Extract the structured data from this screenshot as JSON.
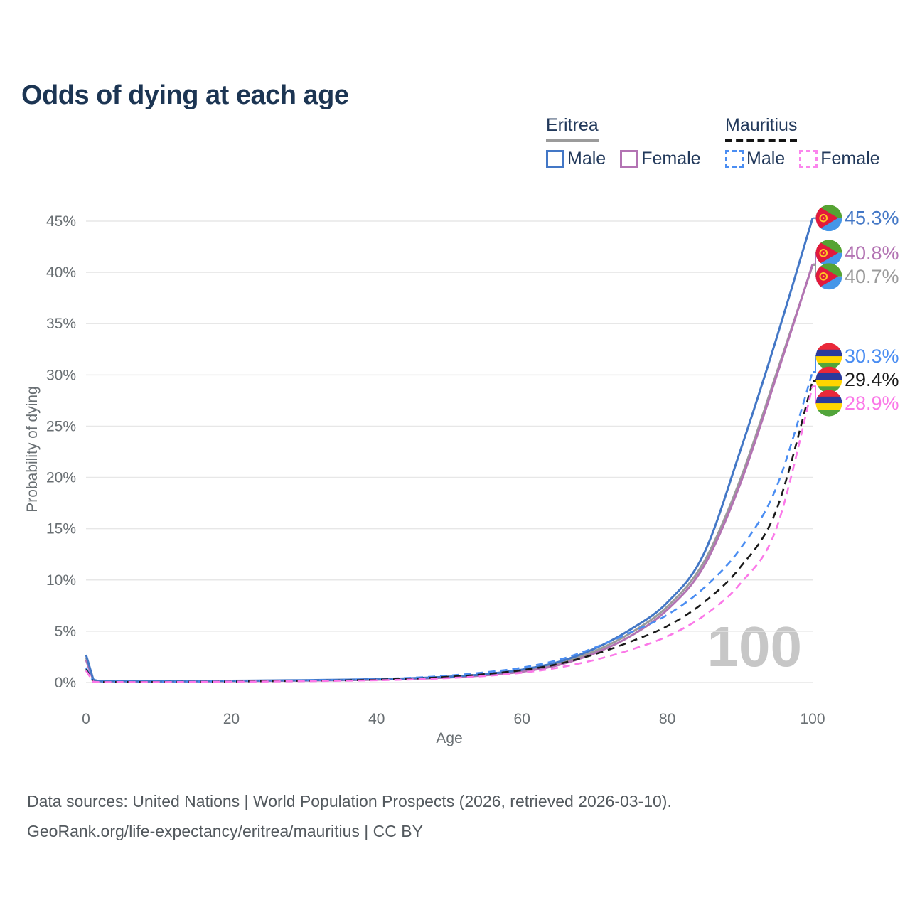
{
  "title": "Odds of dying at each age",
  "watermark": "100",
  "legend": {
    "eritrea": {
      "label": "Eritrea",
      "male": "Male",
      "female": "Female"
    },
    "mauritius": {
      "label": "Mauritius",
      "male": "Male",
      "female": "Female"
    }
  },
  "footer": {
    "line1": "Data sources: United Nations | World Population Prospects (2026, retrieved 2026-03-10).",
    "line2": "GeoRank.org/life-expectancy/eritrea/mauritius | CC BY"
  },
  "colors": {
    "title_text": "#1c3553",
    "legend_text": "#22395b",
    "tick_text": "#696f73",
    "grid": "#e7e7e7",
    "watermark_text": "#c7c7c7",
    "eritrea_underline": "#9b9b9b",
    "mauritius_underline": "#141414"
  },
  "chart_data": {
    "type": "line",
    "title": "Odds of dying at each age",
    "xlabel": "Age",
    "ylabel": "Probability of dying",
    "xlim": [
      0,
      100
    ],
    "ylim_percent": [
      0,
      45
    ],
    "x_ticks": [
      0,
      20,
      40,
      60,
      80,
      100
    ],
    "y_ticks_percent": [
      0,
      5,
      10,
      15,
      20,
      25,
      30,
      35,
      40,
      45
    ],
    "grid": true,
    "legend_position": "top-right",
    "x": [
      0,
      1,
      5,
      10,
      15,
      20,
      25,
      30,
      35,
      40,
      45,
      50,
      55,
      60,
      65,
      70,
      75,
      80,
      85,
      90,
      95,
      100
    ],
    "series": [
      {
        "name": "Eritrea Male",
        "country": "Eritrea",
        "sex": "Male",
        "style": "solid",
        "color": "#4377c6",
        "flag": "eritrea",
        "end_label": "45.3%",
        "end_value_percent": 45.3,
        "values": [
          2.7,
          0.3,
          0.15,
          0.12,
          0.14,
          0.17,
          0.2,
          0.23,
          0.27,
          0.33,
          0.42,
          0.57,
          0.82,
          1.25,
          2.0,
          3.3,
          5.2,
          7.8,
          12.5,
          22.5,
          33.5,
          45.3
        ]
      },
      {
        "name": "Eritrea Female",
        "country": "Eritrea",
        "sex": "Female",
        "style": "solid",
        "color": "#b373b3",
        "flag": "eritrea",
        "end_label": "40.8%",
        "end_value_percent": 40.8,
        "values": [
          2.2,
          0.26,
          0.12,
          0.1,
          0.11,
          0.13,
          0.16,
          0.19,
          0.23,
          0.28,
          0.36,
          0.49,
          0.71,
          1.05,
          1.7,
          2.85,
          4.55,
          7.1,
          11.3,
          19.3,
          29.8,
          40.8
        ]
      },
      {
        "name": "Eritrea",
        "country": "Eritrea",
        "sex": "Both",
        "style": "solid",
        "color": "#9b9b9b",
        "flag": "eritrea",
        "end_label": "40.7%",
        "end_value_percent": 40.7,
        "values": [
          2.45,
          0.28,
          0.13,
          0.11,
          0.12,
          0.15,
          0.18,
          0.21,
          0.25,
          0.3,
          0.39,
          0.53,
          0.76,
          1.15,
          1.85,
          3.05,
          4.85,
          7.4,
          11.7,
          19.7,
          30.1,
          40.7
        ]
      },
      {
        "name": "Mauritius Male",
        "country": "Mauritius",
        "sex": "Male",
        "style": "dashed",
        "color": "#4a8df2",
        "flag": "mauritius",
        "end_label": "30.3%",
        "end_value_percent": 30.3,
        "values": [
          1.45,
          0.1,
          0.06,
          0.06,
          0.09,
          0.13,
          0.17,
          0.21,
          0.26,
          0.34,
          0.47,
          0.68,
          1.0,
          1.45,
          2.2,
          3.4,
          4.9,
          6.6,
          9.2,
          13.0,
          19.0,
          30.3
        ]
      },
      {
        "name": "Mauritius",
        "country": "Mauritius",
        "sex": "Both",
        "style": "dashed",
        "color": "#1a1a1a",
        "flag": "mauritius",
        "end_label": "29.4%",
        "end_value_percent": 29.4,
        "values": [
          1.3,
          0.09,
          0.05,
          0.05,
          0.07,
          0.1,
          0.13,
          0.17,
          0.21,
          0.28,
          0.38,
          0.56,
          0.82,
          1.2,
          1.8,
          2.75,
          4.0,
          5.5,
          7.8,
          11.2,
          16.8,
          29.4
        ]
      },
      {
        "name": "Mauritius Female",
        "country": "Mauritius",
        "sex": "Female",
        "style": "dashed",
        "color": "#fb78e8",
        "flag": "mauritius",
        "end_label": "28.9%",
        "end_value_percent": 28.9,
        "values": [
          1.15,
          0.08,
          0.05,
          0.04,
          0.06,
          0.08,
          0.1,
          0.13,
          0.17,
          0.22,
          0.3,
          0.44,
          0.64,
          0.95,
          1.45,
          2.2,
          3.2,
          4.5,
          6.5,
          9.6,
          15.0,
          28.9
        ]
      }
    ],
    "flag_colors": {
      "eritrea": {
        "green": "#55a333",
        "blue": "#4596e8",
        "red": "#e2193c",
        "yellow": "#ffc726"
      },
      "mauritius": {
        "red": "#ea2839",
        "blue": "#2b3a9c",
        "yellow": "#ffd500",
        "green": "#52a53b"
      }
    }
  }
}
